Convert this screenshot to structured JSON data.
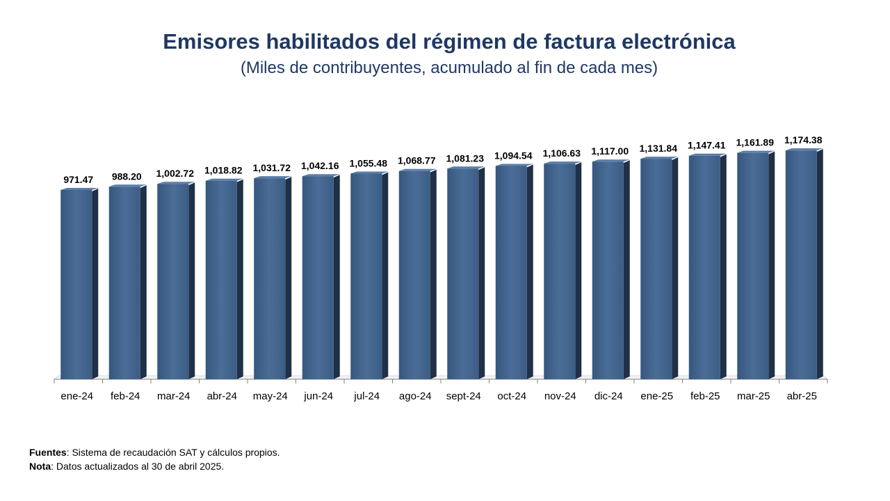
{
  "chart_data": {
    "type": "bar",
    "title": "Emisores habilitados del régimen de factura electrónica",
    "subtitle": "(Miles de contribuyentes, acumulado al fin de cada mes)",
    "categories": [
      "ene-24",
      "feb-24",
      "mar-24",
      "abr-24",
      "may-24",
      "jun-24",
      "jul-24",
      "ago-24",
      "sept-24",
      "oct-24",
      "nov-24",
      "dic-24",
      "ene-25",
      "feb-25",
      "mar-25",
      "abr-25"
    ],
    "values": [
      971.47,
      988.2,
      1002.72,
      1018.82,
      1031.72,
      1042.16,
      1055.48,
      1068.77,
      1081.23,
      1094.54,
      1106.63,
      1117.0,
      1131.84,
      1147.41,
      1161.89,
      1174.38
    ],
    "value_labels": [
      "971.47",
      "988.20",
      "1,002.72",
      "1,018.82",
      "1,031.72",
      "1,042.16",
      "1,055.48",
      "1,068.77",
      "1,081.23",
      "1,094.54",
      "1,106.63",
      "1,117.00",
      "1,131.84",
      "1,147.41",
      "1,161.89",
      "1,174.38"
    ],
    "xlabel": "",
    "ylabel": "",
    "ylim": [
      0,
      1200
    ],
    "grid": false,
    "bar_color": "#3f6189",
    "bar_side_color": "#1f3047"
  },
  "footnotes": {
    "sources_label": "Fuentes",
    "sources_text": ": Sistema de recaudación SAT y cálculos propios.",
    "note_label": "Nota",
    "note_text": ": Datos actualizados al  30 de abril 2025."
  }
}
